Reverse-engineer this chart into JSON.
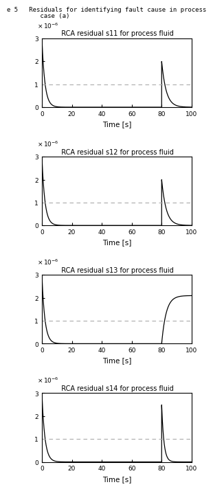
{
  "plots": [
    {
      "title": "RCA residual s11 for process fluid",
      "threshold": 1.0,
      "curve_type": "spike_decay",
      "init_peak": 3.0,
      "init_decay_tau": 2.0,
      "fault_peak_time": 80,
      "fault_peak": 2.0,
      "fault_decay_tau": 3.0
    },
    {
      "title": "RCA residual s12 for process fluid",
      "threshold": 1.0,
      "curve_type": "spike_decay",
      "init_peak": 3.0,
      "init_decay_tau": 2.0,
      "fault_peak_time": 80,
      "fault_peak": 2.0,
      "fault_decay_tau": 3.0
    },
    {
      "title": "RCA residual s13 for process fluid",
      "threshold": 1.0,
      "curve_type": "step_response",
      "init_peak": 3.0,
      "init_decay_tau": 2.0,
      "fault_peak_time": 80,
      "fault_step": 2.1,
      "fault_rise_tau": 3.0
    },
    {
      "title": "RCA residual s14 for process fluid",
      "threshold": 1.0,
      "curve_type": "spike_decay_fast",
      "init_peak": 3.0,
      "init_decay_tau": 2.0,
      "fault_peak_time": 80,
      "fault_peak": 2.5,
      "fault_decay_tau": 1.5
    }
  ],
  "xlim": [
    0,
    100
  ],
  "ylim": [
    0,
    3
  ],
  "yticks": [
    0,
    1,
    2,
    3
  ],
  "xticks": [
    0,
    20,
    40,
    60,
    80,
    100
  ],
  "xlabel": "Time [s]",
  "line_color": "#000000",
  "threshold_color": "#aaaaaa",
  "background_color": "#ffffff",
  "fig_width": 2.83,
  "fig_height": 7.17,
  "header_line1": "e 5   Residuals for identifying fault cause in process",
  "header_line2": "         case (a)"
}
